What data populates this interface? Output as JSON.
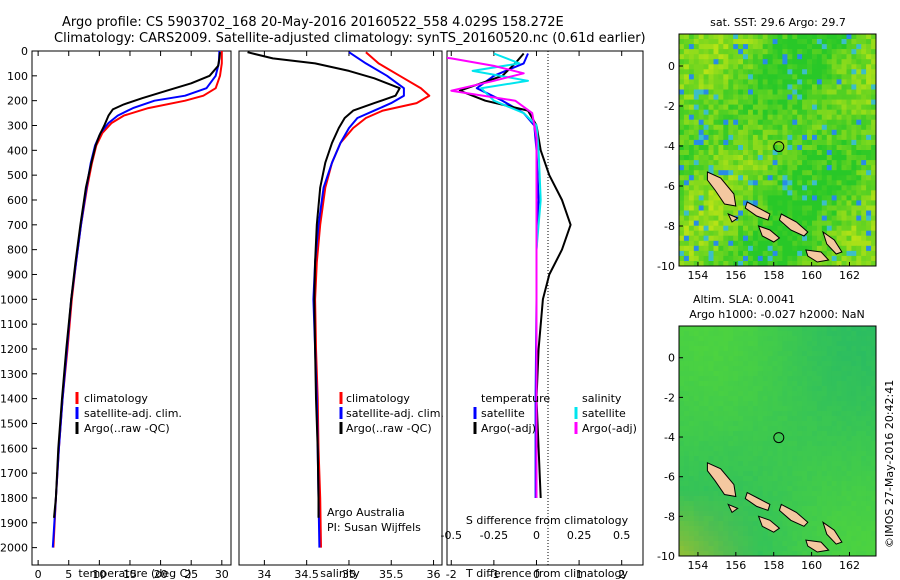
{
  "header": {
    "line1": "Argo profile: CS 5903702_168 20-May-2016 20160522_558 4.029S 158.272E",
    "line2": "Climatology: CARS2009. Satellite-adjusted climatology: synTS_20160520.nc (0.61d earlier)"
  },
  "side_stamp": "©IMOS 27-May-2016 20:42:41",
  "colors": {
    "red": "#ff0000",
    "blue": "#0000ff",
    "black": "#000000",
    "cyan": "#00e5ee",
    "magenta": "#ff00ff",
    "land": "#f4c8a0"
  },
  "chart_data": [
    {
      "type": "line",
      "panel": "temperature",
      "xlabel": "temperature (deg C)",
      "ylabel": "",
      "xlim": [
        -1,
        31.5
      ],
      "ylim": [
        2070,
        0
      ],
      "x_ticks": [
        "0",
        "5",
        "10",
        "15",
        "20",
        "25",
        "30"
      ],
      "x_tick_values": [
        0,
        5,
        10,
        15,
        20,
        25,
        30
      ],
      "y_ticks": [
        "0",
        "100",
        "200",
        "300",
        "400",
        "500",
        "600",
        "700",
        "800",
        "900",
        "1000",
        "1100",
        "1200",
        "1300",
        "1400",
        "1500",
        "1600",
        "1700",
        "1800",
        "1900",
        "2000"
      ],
      "legend": [
        "climatology",
        "satellite-adj. clim.",
        "Argo(..raw -QC)"
      ],
      "series": [
        {
          "name": "climatology",
          "color": "red",
          "points": [
            [
              30.0,
              0
            ],
            [
              30.0,
              50
            ],
            [
              29.7,
              100
            ],
            [
              29.0,
              150
            ],
            [
              27.0,
              180
            ],
            [
              24.0,
              200
            ],
            [
              18.0,
              230
            ],
            [
              14.0,
              260
            ],
            [
              12.0,
              290
            ],
            [
              10.5,
              330
            ],
            [
              9.5,
              380
            ],
            [
              8.8,
              450
            ],
            [
              8.0,
              550
            ],
            [
              7.0,
              700
            ],
            [
              6.2,
              850
            ],
            [
              5.5,
              1000
            ],
            [
              4.8,
              1200
            ],
            [
              4.0,
              1400
            ],
            [
              3.4,
              1600
            ],
            [
              2.9,
              1800
            ],
            [
              2.5,
              2000
            ]
          ]
        },
        {
          "name": "satellite-adj. clim.",
          "color": "blue",
          "points": [
            [
              29.6,
              0
            ],
            [
              29.5,
              50
            ],
            [
              29.0,
              100
            ],
            [
              27.5,
              150
            ],
            [
              24.0,
              180
            ],
            [
              19.0,
              200
            ],
            [
              15.5,
              230
            ],
            [
              13.0,
              260
            ],
            [
              11.5,
              290
            ],
            [
              10.2,
              330
            ],
            [
              9.3,
              380
            ],
            [
              8.6,
              450
            ],
            [
              7.9,
              550
            ],
            [
              7.0,
              700
            ],
            [
              6.2,
              850
            ],
            [
              5.4,
              1000
            ],
            [
              4.7,
              1200
            ],
            [
              4.0,
              1400
            ],
            [
              3.4,
              1600
            ],
            [
              2.9,
              1800
            ],
            [
              2.4,
              2000
            ]
          ]
        },
        {
          "name": "Argo(..raw -QC)",
          "color": "black",
          "points": [
            [
              29.7,
              5
            ],
            [
              29.6,
              30
            ],
            [
              29.4,
              60
            ],
            [
              28.0,
              100
            ],
            [
              25.0,
              130
            ],
            [
              21.0,
              160
            ],
            [
              17.0,
              190
            ],
            [
              14.0,
              215
            ],
            [
              12.2,
              235
            ],
            [
              11.5,
              260
            ],
            [
              10.8,
              300
            ],
            [
              10.0,
              340
            ],
            [
              9.4,
              380
            ],
            [
              8.7,
              450
            ],
            [
              7.8,
              550
            ],
            [
              6.9,
              700
            ],
            [
              6.1,
              850
            ],
            [
              5.4,
              1000
            ],
            [
              4.6,
              1200
            ],
            [
              3.9,
              1400
            ],
            [
              3.3,
              1600
            ],
            [
              2.9,
              1800
            ],
            [
              2.6,
              1880
            ]
          ]
        }
      ]
    },
    {
      "type": "line",
      "panel": "salinity",
      "xlabel": "salinity",
      "xlim": [
        33.7,
        36.1
      ],
      "ylim": [
        2070,
        0
      ],
      "x_ticks": [
        "34",
        "34.5",
        "35",
        "35.5",
        "36"
      ],
      "x_tick_values": [
        34,
        34.5,
        35,
        35.5,
        36
      ],
      "legend": [
        "climatology",
        "satellite-adj. clim.",
        "Argo(..raw -QC)"
      ],
      "annotation": [
        "Argo Australia",
        "PI: Susan Wijffels"
      ],
      "series": [
        {
          "name": "climatology",
          "color": "red",
          "points": [
            [
              35.2,
              5
            ],
            [
              35.35,
              50
            ],
            [
              35.6,
              100
            ],
            [
              35.85,
              150
            ],
            [
              35.95,
              180
            ],
            [
              35.8,
              210
            ],
            [
              35.4,
              240
            ],
            [
              35.2,
              270
            ],
            [
              35.05,
              310
            ],
            [
              34.9,
              370
            ],
            [
              34.8,
              450
            ],
            [
              34.72,
              550
            ],
            [
              34.66,
              700
            ],
            [
              34.62,
              850
            ],
            [
              34.6,
              1000
            ],
            [
              34.61,
              1200
            ],
            [
              34.63,
              1400
            ],
            [
              34.64,
              1600
            ],
            [
              34.66,
              1800
            ],
            [
              34.67,
              2000
            ]
          ]
        },
        {
          "name": "satellite-adj. clim.",
          "color": "blue",
          "points": [
            [
              35.0,
              5
            ],
            [
              35.2,
              50
            ],
            [
              35.45,
              100
            ],
            [
              35.65,
              150
            ],
            [
              35.65,
              180
            ],
            [
              35.5,
              210
            ],
            [
              35.3,
              240
            ],
            [
              35.1,
              270
            ],
            [
              35.0,
              310
            ],
            [
              34.9,
              370
            ],
            [
              34.8,
              450
            ],
            [
              34.7,
              550
            ],
            [
              34.64,
              700
            ],
            [
              34.6,
              850
            ],
            [
              34.58,
              1000
            ],
            [
              34.6,
              1200
            ],
            [
              34.62,
              1400
            ],
            [
              34.63,
              1600
            ],
            [
              34.64,
              1800
            ],
            [
              34.65,
              2000
            ]
          ]
        },
        {
          "name": "Argo(..raw -QC)",
          "color": "black",
          "points": [
            [
              33.8,
              5
            ],
            [
              34.1,
              30
            ],
            [
              34.6,
              50
            ],
            [
              35.0,
              80
            ],
            [
              35.3,
              110
            ],
            [
              35.6,
              150
            ],
            [
              35.55,
              180
            ],
            [
              35.3,
              210
            ],
            [
              35.05,
              240
            ],
            [
              34.95,
              270
            ],
            [
              34.88,
              310
            ],
            [
              34.8,
              370
            ],
            [
              34.72,
              450
            ],
            [
              34.66,
              550
            ],
            [
              34.62,
              700
            ],
            [
              34.6,
              850
            ],
            [
              34.59,
              1000
            ],
            [
              34.6,
              1200
            ],
            [
              34.61,
              1400
            ],
            [
              34.63,
              1600
            ],
            [
              34.64,
              1800
            ],
            [
              34.64,
              1880
            ]
          ]
        }
      ]
    },
    {
      "type": "line",
      "panel": "difference",
      "xlabel": "T difference from climatology",
      "xlabel_top": "S difference from climatology",
      "xlim": [
        -2.1,
        2.5
      ],
      "ylim": [
        2070,
        0
      ],
      "x_ticks": [
        "-2",
        "-1",
        "0",
        "1",
        "2"
      ],
      "x_tick_values": [
        -2,
        -1,
        0,
        1,
        2
      ],
      "s_ticks": [
        "-0.5",
        "-0.25",
        "0",
        "0.25",
        "0.5"
      ],
      "s_tick_values": [
        -2,
        -1,
        0,
        1,
        2
      ],
      "legend_left": {
        "title": "temperature",
        "items": [
          "satellite",
          "Argo(-adj)"
        ]
      },
      "legend_right": {
        "title": "salinity",
        "items": [
          "satellite",
          "Argo(-adj)"
        ]
      },
      "series": [
        {
          "name": "T satellite",
          "color": "blue",
          "points": [
            [
              -0.2,
              10
            ],
            [
              -0.3,
              50
            ],
            [
              -1.0,
              100
            ],
            [
              -1.4,
              150
            ],
            [
              -0.8,
              200
            ],
            [
              -0.3,
              250
            ],
            [
              -0.05,
              300
            ],
            [
              0.0,
              400
            ],
            [
              0.05,
              600
            ],
            [
              0.0,
              800
            ],
            [
              0.0,
              1000
            ],
            [
              -0.02,
              1400
            ],
            [
              -0.02,
              1800
            ]
          ]
        },
        {
          "name": "T Argo(-adj)",
          "color": "black",
          "points": [
            [
              -0.3,
              10
            ],
            [
              -0.5,
              50
            ],
            [
              -0.8,
              100
            ],
            [
              -1.8,
              160
            ],
            [
              -1.2,
              200
            ],
            [
              -0.2,
              240
            ],
            [
              0.0,
              300
            ],
            [
              0.1,
              400
            ],
            [
              0.3,
              500
            ],
            [
              0.6,
              600
            ],
            [
              0.8,
              700
            ],
            [
              0.6,
              800
            ],
            [
              0.3,
              900
            ],
            [
              0.15,
              1000
            ],
            [
              0.05,
              1200
            ],
            [
              0.0,
              1400
            ],
            [
              0.05,
              1600
            ],
            [
              0.1,
              1800
            ]
          ]
        },
        {
          "name": "S satellite",
          "color": "cyan",
          "points": [
            [
              -1.0,
              10
            ],
            [
              -0.4,
              50
            ],
            [
              -1.5,
              80
            ],
            [
              -0.2,
              120
            ],
            [
              -1.3,
              150
            ],
            [
              -1.0,
              200
            ],
            [
              -0.3,
              250
            ],
            [
              0.0,
              300
            ],
            [
              0.05,
              400
            ],
            [
              0.1,
              600
            ],
            [
              0.0,
              800
            ],
            [
              0.0,
              1200
            ],
            [
              0.0,
              1800
            ]
          ]
        },
        {
          "name": "S Argo(-adj)",
          "color": "magenta",
          "points": [
            [
              -3.0,
              10
            ],
            [
              -2.0,
              30
            ],
            [
              -1.0,
              60
            ],
            [
              -0.3,
              90
            ],
            [
              -1.0,
              120
            ],
            [
              -2.0,
              160
            ],
            [
              -0.5,
              200
            ],
            [
              -0.1,
              250
            ],
            [
              0.0,
              350
            ],
            [
              0.0,
              600
            ],
            [
              0.0,
              1000
            ],
            [
              0.0,
              1800
            ]
          ]
        }
      ]
    },
    {
      "type": "heatmap",
      "panel": "sst-map",
      "title": "sat. SST: 29.6  Argo: 29.7",
      "x_ticks": [
        "154",
        "156",
        "158",
        "160",
        "162"
      ],
      "x_tick_values": [
        154,
        156,
        158,
        160,
        162
      ],
      "y_ticks": [
        "0",
        "-2",
        "-4",
        "-6",
        "-8",
        "-10"
      ],
      "y_tick_values": [
        0,
        -2,
        -4,
        -6,
        -8,
        -10
      ],
      "xlim": [
        153,
        163.4
      ],
      "ylim": [
        -10,
        1.6
      ],
      "argo_position": [
        158.27,
        -4.03
      ]
    },
    {
      "type": "heatmap",
      "panel": "sla-map",
      "title": "Altim. SLA: 0.0041",
      "subtitle": "Argo h1000: -0.027  h2000: NaN",
      "x_ticks": [
        "154",
        "156",
        "158",
        "160",
        "162"
      ],
      "x_tick_values": [
        154,
        156,
        158,
        160,
        162
      ],
      "y_ticks": [
        "0",
        "-2",
        "-4",
        "-6",
        "-8",
        "-10"
      ],
      "y_tick_values": [
        0,
        -2,
        -4,
        -6,
        -8,
        -10
      ],
      "xlim": [
        153,
        163.4
      ],
      "ylim": [
        -10,
        1.6
      ],
      "argo_position": [
        158.27,
        -4.03
      ]
    }
  ]
}
